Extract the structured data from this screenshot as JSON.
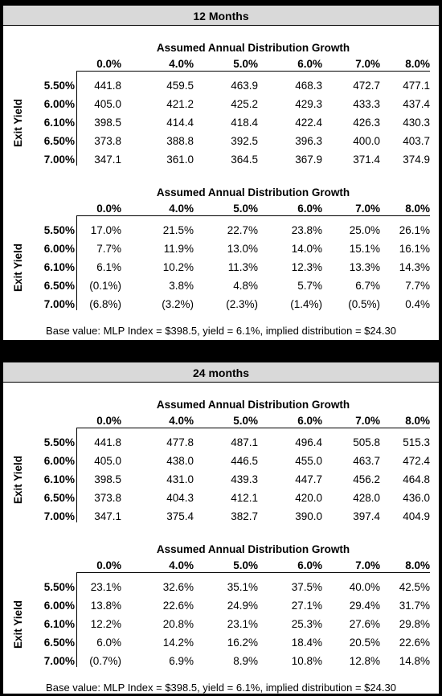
{
  "panels": [
    {
      "title": "12 Months",
      "tables": [
        {
          "header": "Assumed Annual Distribution Growth",
          "side_label": "Exit Yield",
          "columns": [
            "0.0%",
            "4.0%",
            "5.0%",
            "6.0%",
            "7.0%",
            "8.0%"
          ],
          "rows": [
            {
              "label": "5.50%",
              "values": [
                "441.8",
                "459.5",
                "463.9",
                "468.3",
                "472.7",
                "477.1"
              ]
            },
            {
              "label": "6.00%",
              "values": [
                "405.0",
                "421.2",
                "425.2",
                "429.3",
                "433.3",
                "437.4"
              ]
            },
            {
              "label": "6.10%",
              "values": [
                "398.5",
                "414.4",
                "418.4",
                "422.4",
                "426.3",
                "430.3"
              ]
            },
            {
              "label": "6.50%",
              "values": [
                "373.8",
                "388.8",
                "392.5",
                "396.3",
                "400.0",
                "403.7"
              ]
            },
            {
              "label": "7.00%",
              "values": [
                "347.1",
                "361.0",
                "364.5",
                "367.9",
                "371.4",
                "374.9"
              ]
            }
          ]
        },
        {
          "header": "Assumed Annual Distribution Growth",
          "side_label": "Exit Yield",
          "columns": [
            "0.0%",
            "4.0%",
            "5.0%",
            "6.0%",
            "7.0%",
            "8.0%"
          ],
          "rows": [
            {
              "label": "5.50%",
              "values": [
                "17.0%",
                "21.5%",
                "22.7%",
                "23.8%",
                "25.0%",
                "26.1%"
              ]
            },
            {
              "label": "6.00%",
              "values": [
                "7.7%",
                "11.9%",
                "13.0%",
                "14.0%",
                "15.1%",
                "16.1%"
              ]
            },
            {
              "label": "6.10%",
              "values": [
                "6.1%",
                "10.2%",
                "11.3%",
                "12.3%",
                "13.3%",
                "14.3%"
              ]
            },
            {
              "label": "6.50%",
              "values": [
                "(0.1%)",
                "3.8%",
                "4.8%",
                "5.7%",
                "6.7%",
                "7.7%"
              ]
            },
            {
              "label": "7.00%",
              "values": [
                "(6.8%)",
                "(3.2%)",
                "(2.3%)",
                "(1.4%)",
                "(0.5%)",
                "0.4%"
              ]
            }
          ]
        }
      ],
      "footnote": "Base value: MLP Index = $398.5, yield = 6.1%, implied distribution = $24.30"
    },
    {
      "title": "24 months",
      "tables": [
        {
          "header": "Assumed Annual Distribution Growth",
          "side_label": "Exit Yield",
          "columns": [
            "0.0%",
            "4.0%",
            "5.0%",
            "6.0%",
            "7.0%",
            "8.0%"
          ],
          "rows": [
            {
              "label": "5.50%",
              "values": [
                "441.8",
                "477.8",
                "487.1",
                "496.4",
                "505.8",
                "515.3"
              ]
            },
            {
              "label": "6.00%",
              "values": [
                "405.0",
                "438.0",
                "446.5",
                "455.0",
                "463.7",
                "472.4"
              ]
            },
            {
              "label": "6.10%",
              "values": [
                "398.5",
                "431.0",
                "439.3",
                "447.7",
                "456.2",
                "464.8"
              ]
            },
            {
              "label": "6.50%",
              "values": [
                "373.8",
                "404.3",
                "412.1",
                "420.0",
                "428.0",
                "436.0"
              ]
            },
            {
              "label": "7.00%",
              "values": [
                "347.1",
                "375.4",
                "382.7",
                "390.0",
                "397.4",
                "404.9"
              ]
            }
          ]
        },
        {
          "header": "Assumed Annual Distribution Growth",
          "side_label": "Exit Yield",
          "columns": [
            "0.0%",
            "4.0%",
            "5.0%",
            "6.0%",
            "7.0%",
            "8.0%"
          ],
          "rows": [
            {
              "label": "5.50%",
              "values": [
                "23.1%",
                "32.6%",
                "35.1%",
                "37.5%",
                "40.0%",
                "42.5%"
              ]
            },
            {
              "label": "6.00%",
              "values": [
                "13.8%",
                "22.6%",
                "24.9%",
                "27.1%",
                "29.4%",
                "31.7%"
              ]
            },
            {
              "label": "6.10%",
              "values": [
                "12.2%",
                "20.8%",
                "23.1%",
                "25.3%",
                "27.6%",
                "29.8%"
              ]
            },
            {
              "label": "6.50%",
              "values": [
                "6.0%",
                "14.2%",
                "16.2%",
                "18.4%",
                "20.5%",
                "22.6%"
              ]
            },
            {
              "label": "7.00%",
              "values": [
                "(0.7%)",
                "6.9%",
                "8.9%",
                "10.8%",
                "12.8%",
                "14.8%"
              ]
            }
          ]
        }
      ],
      "footnote": "Base value: MLP Index = $398.5, yield = 6.1%, implied distribution = $24.30"
    }
  ]
}
